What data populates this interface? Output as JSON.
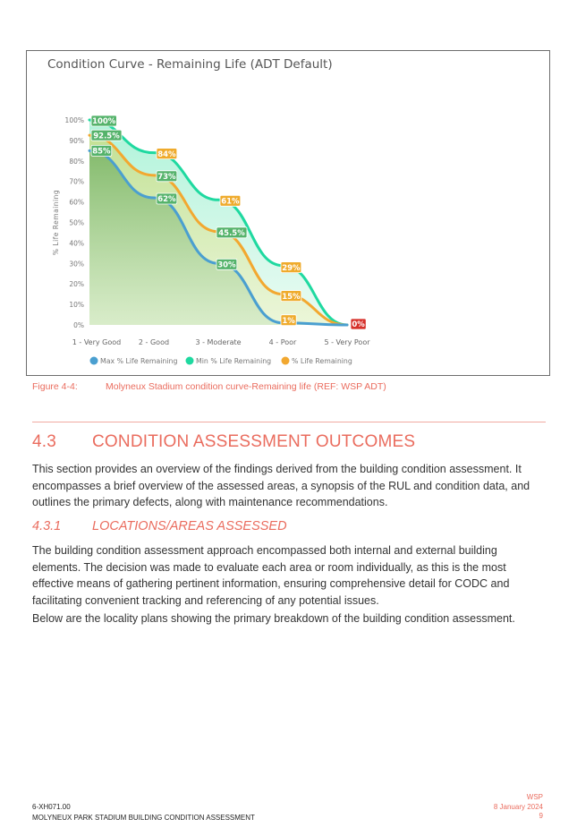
{
  "figure": {
    "number": "Figure 4-4:",
    "caption": "Molyneux Stadium condition curve-Remaining life (REF: WSP ADT)"
  },
  "chart_data": {
    "type": "area",
    "title": "Condition Curve - Remaining Life (ADT Default)",
    "ylabel": "% Life Remaining",
    "xlabel": "",
    "ylim": [
      0,
      100
    ],
    "y_ticks": [
      "0%",
      "10%",
      "20%",
      "30%",
      "40%",
      "50%",
      "60%",
      "70%",
      "80%",
      "90%",
      "100%"
    ],
    "categories": [
      "1 - Very Good",
      "2 - Good",
      "3 - Moderate",
      "4 - Poor",
      "5 - Very Poor"
    ],
    "series": [
      {
        "name": "Max % Life Remaining",
        "color": "#4a9fd0",
        "values": [
          85,
          62,
          30,
          1,
          0
        ],
        "labels": [
          "85%",
          "62%",
          "30%",
          "1%",
          "0%"
        ]
      },
      {
        "name": "Min % Life Remaining",
        "color": "#1fd9a0",
        "values": [
          100,
          84,
          61,
          29,
          0
        ],
        "labels": [
          "100%",
          "84%",
          "61%",
          "29%",
          "0%"
        ]
      },
      {
        "name": "% Life Remaining",
        "color": "#f2a830",
        "values": [
          92.5,
          73,
          45.5,
          15,
          0
        ],
        "labels": [
          "92.5%",
          "73%",
          "45.5%",
          "15%",
          "0%"
        ]
      }
    ],
    "legend_position": "bottom"
  },
  "colors": {
    "accent": "#ea6c5e",
    "label_green": "#55b36b",
    "label_orange": "#efab2d",
    "label_red": "#d6302b"
  },
  "section": {
    "number": "4.3",
    "title": "CONDITION ASSESSMENT OUTCOMES",
    "intro": "This section provides an overview of the findings derived from the building condition assessment. It encompasses a brief overview of the assessed areas, a synopsis of the RUL and condition data, and outlines the primary defects, along with maintenance recommendations."
  },
  "subsection": {
    "number": "4.3.1",
    "title": "LOCATIONS/AREAS ASSESSED",
    "para1": "The building condition assessment approach encompassed both internal and external building elements. The decision was made to evaluate each area or room individually, as this is the most effective means of gathering pertinent information, ensuring comprehensive detail for CODC and facilitating convenient tracking and referencing of any potential issues.",
    "para2": "Below are the locality plans showing the primary breakdown of the building condition assessment."
  },
  "footer": {
    "doc_number": "6-XH071.00",
    "doc_title": "MOLYNEUX PARK STADIUM BUILDING CONDITION ASSESSMENT",
    "company": "WSP",
    "date": "8 January 2024",
    "page": "9"
  }
}
